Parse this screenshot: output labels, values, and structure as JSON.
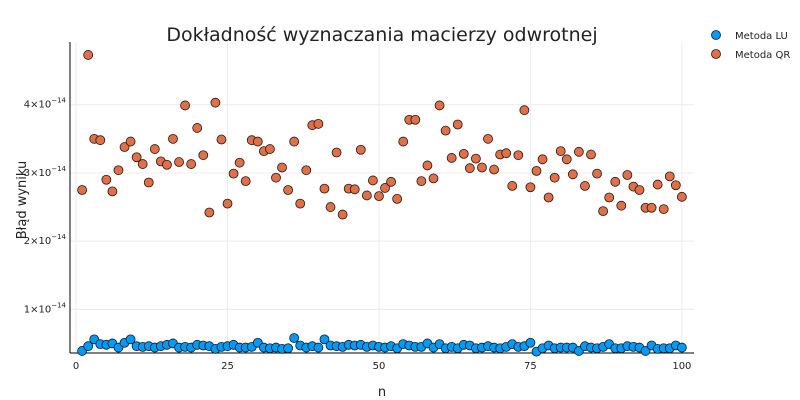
{
  "chart_data": {
    "type": "scatter",
    "title": "Dokładność wyznaczania macierzy odwrotnej",
    "xlabel": "n",
    "ylabel": "Błąd wyniku",
    "xlim": [
      -1,
      102
    ],
    "ylim": [
      3.6e-15,
      4.92e-14
    ],
    "xticks": [
      0,
      25,
      50,
      75,
      100
    ],
    "xtick_labels": [
      "0",
      "25",
      "50",
      "75",
      "100"
    ],
    "yticks": [
      1e-14,
      2e-14,
      3e-14,
      4e-14
    ],
    "ytick_mantissa": [
      "1×10",
      "2×10",
      "3×10",
      "4×10"
    ],
    "ytick_exponent": "−14",
    "grid": true,
    "legend_position": "top-right",
    "series": [
      {
        "name": "Metoda LU",
        "color": "#009AF9",
        "x": [
          1,
          2,
          3,
          4,
          5,
          6,
          7,
          8,
          9,
          10,
          11,
          12,
          13,
          14,
          15,
          16,
          17,
          18,
          19,
          20,
          21,
          22,
          23,
          24,
          25,
          26,
          27,
          28,
          29,
          30,
          31,
          32,
          33,
          34,
          35,
          36,
          37,
          38,
          39,
          40,
          41,
          42,
          43,
          44,
          45,
          46,
          47,
          48,
          49,
          50,
          51,
          52,
          53,
          54,
          55,
          56,
          57,
          58,
          59,
          60,
          61,
          62,
          63,
          64,
          65,
          66,
          67,
          68,
          69,
          70,
          71,
          72,
          73,
          74,
          75,
          76,
          77,
          78,
          79,
          80,
          81,
          82,
          83,
          84,
          85,
          86,
          87,
          88,
          89,
          90,
          91,
          92,
          93,
          94,
          95,
          96,
          97,
          98,
          99,
          100
        ],
        "y": [
          3.9e-15,
          4.6e-15,
          5.6e-15,
          4.9e-15,
          4.8e-15,
          5e-15,
          4.4e-15,
          5.1e-15,
          5.6e-15,
          4.6e-15,
          4.5e-15,
          4.6e-15,
          4.4e-15,
          4.6e-15,
          4.8e-15,
          5e-15,
          4.4e-15,
          4.5e-15,
          4.4e-15,
          4.8e-15,
          4.7e-15,
          4.6e-15,
          4.2e-15,
          4.5e-15,
          4.6e-15,
          4.8e-15,
          4.4e-15,
          4.4e-15,
          4.5e-15,
          5.1e-15,
          4.4e-15,
          4.3e-15,
          4.4e-15,
          4.2e-15,
          4.3e-15,
          5.8e-15,
          4.7e-15,
          4.4e-15,
          4.6e-15,
          4.4e-15,
          5.6e-15,
          4.7e-15,
          4.6e-15,
          4.5e-15,
          4.8e-15,
          4.7e-15,
          4.8e-15,
          4.5e-15,
          4.7e-15,
          4.5e-15,
          4.4e-15,
          4.6e-15,
          4.3e-15,
          4.9e-15,
          4.7e-15,
          4.5e-15,
          4.5e-15,
          5e-15,
          4.4e-15,
          4.9e-15,
          4.3e-15,
          4.5e-15,
          4.3e-15,
          4.8e-15,
          4.7e-15,
          4.3e-15,
          4.4e-15,
          4.6e-15,
          4.4e-15,
          4.3e-15,
          4.5e-15,
          4.9e-15,
          4.5e-15,
          4.6e-15,
          5.1e-15,
          3.8e-15,
          4.3e-15,
          4.7e-15,
          4.3e-15,
          4.4e-15,
          4.4e-15,
          4.4e-15,
          3.9e-15,
          4.6e-15,
          4.4e-15,
          4.3e-15,
          4.5e-15,
          4.9e-15,
          4.3e-15,
          4.3e-15,
          4.6e-15,
          4.5e-15,
          4.4e-15,
          3.9e-15,
          4.7e-15,
          4.2e-15,
          4.3e-15,
          4.3e-15,
          4.7e-15,
          4.4e-15
        ]
      },
      {
        "name": "Metoda QR",
        "color": "#E26F46",
        "x": [
          1,
          2,
          3,
          4,
          5,
          6,
          7,
          8,
          9,
          10,
          11,
          12,
          13,
          14,
          15,
          16,
          17,
          18,
          19,
          20,
          21,
          22,
          23,
          24,
          25,
          26,
          27,
          28,
          29,
          30,
          31,
          32,
          33,
          34,
          35,
          36,
          37,
          38,
          39,
          40,
          41,
          42,
          43,
          44,
          45,
          46,
          47,
          48,
          49,
          50,
          51,
          52,
          53,
          54,
          55,
          56,
          57,
          58,
          59,
          60,
          61,
          62,
          63,
          64,
          65,
          66,
          67,
          68,
          69,
          70,
          71,
          72,
          73,
          74,
          75,
          76,
          77,
          78,
          79,
          80,
          81,
          82,
          83,
          84,
          85,
          86,
          87,
          88,
          89,
          90,
          91,
          92,
          93,
          94,
          95,
          96,
          97,
          98,
          99,
          100
        ],
        "y": [
          2.75e-14,
          4.73e-14,
          3.5e-14,
          3.48e-14,
          2.9e-14,
          2.73e-14,
          3.04e-14,
          3.38e-14,
          3.46e-14,
          3.23e-14,
          3.13e-14,
          2.86e-14,
          3.35e-14,
          3.17e-14,
          3.12e-14,
          3.5e-14,
          3.16e-14,
          3.99e-14,
          3.13e-14,
          3.66e-14,
          3.26e-14,
          2.42e-14,
          4.03e-14,
          3.49e-14,
          2.55e-14,
          2.99e-14,
          3.15e-14,
          2.88e-14,
          3.48e-14,
          3.46e-14,
          3.32e-14,
          3.35e-14,
          2.93e-14,
          3.08e-14,
          2.75e-14,
          3.46e-14,
          2.55e-14,
          3.04e-14,
          3.7e-14,
          3.72e-14,
          2.77e-14,
          2.5e-14,
          3.3e-14,
          2.39e-14,
          2.77e-14,
          2.76e-14,
          3.34e-14,
          2.67e-14,
          2.89e-14,
          2.66e-14,
          2.78e-14,
          2.87e-14,
          2.62e-14,
          3.46e-14,
          3.78e-14,
          3.78e-14,
          2.88e-14,
          3.11e-14,
          2.92e-14,
          3.99e-14,
          3.62e-14,
          3.22e-14,
          3.71e-14,
          3.28e-14,
          3.07e-14,
          3.21e-14,
          3.08e-14,
          3.5e-14,
          3.05e-14,
          3.27e-14,
          3.29e-14,
          2.81e-14,
          3.26e-14,
          3.92e-14,
          2.79e-14,
          3.03e-14,
          3.2e-14,
          2.64e-14,
          2.93e-14,
          3.32e-14,
          3.2e-14,
          2.98e-14,
          3.31e-14,
          2.81e-14,
          3.27e-14,
          2.99e-14,
          2.44e-14,
          2.64e-14,
          2.87e-14,
          2.52e-14,
          2.97e-14,
          2.8e-14,
          2.75e-14,
          2.49e-14,
          2.49e-14,
          2.83e-14,
          2.47e-14,
          2.95e-14,
          2.82e-14,
          2.65e-14
        ]
      }
    ]
  }
}
